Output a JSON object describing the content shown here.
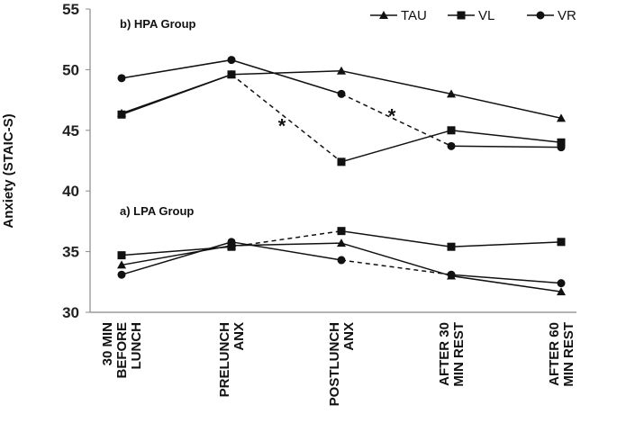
{
  "chart_data": {
    "type": "line",
    "title": "",
    "xlabel": "",
    "ylabel": "Anxiety (STAIC-S)",
    "ylim": [
      30,
      55
    ],
    "yticks": [
      30,
      35,
      40,
      45,
      50,
      55
    ],
    "grid": false,
    "legend_position": "top-right",
    "categories": [
      [
        "30 MIN",
        "BEFORE",
        "LUNCH"
      ],
      [
        "PRELUNCH",
        "ANX"
      ],
      [
        "POSTLUNCH",
        "ANX"
      ],
      [
        "AFTER 30",
        "MIN REST"
      ],
      [
        "AFTER 60",
        "MIN REST"
      ]
    ],
    "legend": [
      {
        "name": "TAU",
        "marker": "triangle"
      },
      {
        "name": "VL",
        "marker": "square"
      },
      {
        "name": "VR",
        "marker": "circle"
      }
    ],
    "groups": [
      {
        "label": "b)   HPA Group",
        "series": [
          {
            "name": "TAU",
            "marker": "triangle",
            "values": [
              46.4,
              49.6,
              49.9,
              48.0,
              46.0
            ],
            "dashed_segments": []
          },
          {
            "name": "VL",
            "marker": "square",
            "values": [
              46.3,
              49.6,
              42.4,
              45.0,
              44.0
            ],
            "dashed_segments": [
              1
            ]
          },
          {
            "name": "VR",
            "marker": "circle",
            "values": [
              49.3,
              50.8,
              48.0,
              43.7,
              43.6
            ],
            "dashed_segments": [
              2
            ]
          }
        ]
      },
      {
        "label": "a)   LPA Group",
        "series": [
          {
            "name": "TAU",
            "marker": "triangle",
            "values": [
              33.9,
              35.5,
              35.7,
              33.0,
              31.7
            ],
            "dashed_segments": []
          },
          {
            "name": "VL",
            "marker": "square",
            "values": [
              34.7,
              35.4,
              36.7,
              35.4,
              35.8
            ],
            "dashed_segments": [
              1
            ]
          },
          {
            "name": "VR",
            "marker": "circle",
            "values": [
              33.1,
              35.8,
              34.3,
              33.1,
              32.4
            ],
            "dashed_segments": [
              2
            ]
          }
        ]
      }
    ],
    "annotations": [
      {
        "text": "*",
        "x_between": [
          1,
          2
        ],
        "y": 45.7
      },
      {
        "text": "*",
        "x_between": [
          2,
          3
        ],
        "y": 46.5
      }
    ]
  }
}
